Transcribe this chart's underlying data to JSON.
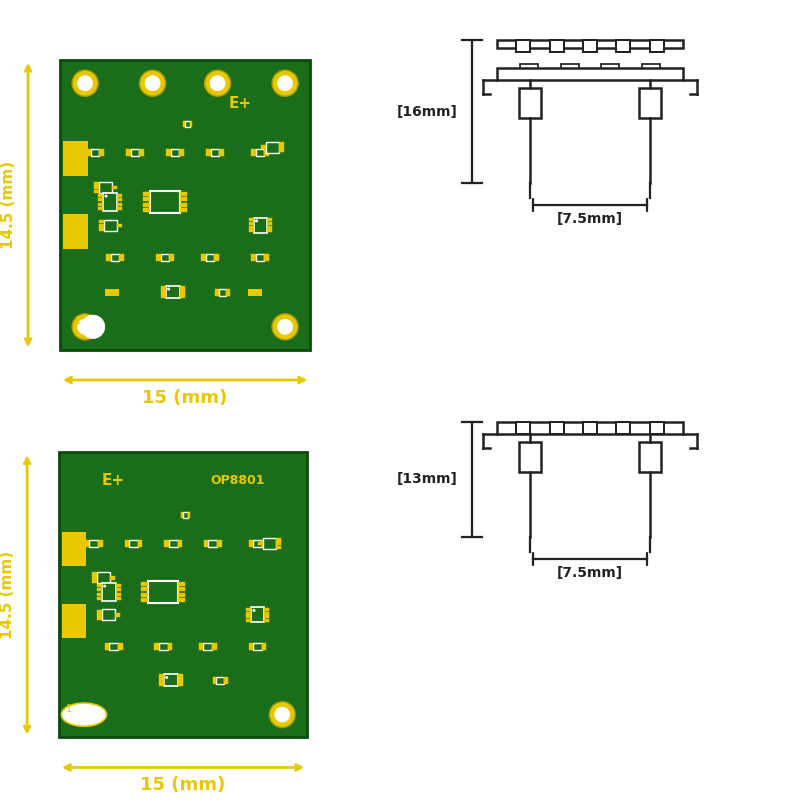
{
  "bg_color": "#ffffff",
  "board_green": "#1a6e1a",
  "pad_yellow": "#e8c800",
  "pad_white": "#ffffff",
  "dim_yellow": "#e8c800",
  "line_color": "#222222",
  "top_panel": {
    "board_label": "E+",
    "dim_height": "14.5 (mm)",
    "dim_width": "15 (mm)",
    "height_label": "[16mm]",
    "width_label": "[7.5mm]"
  },
  "bottom_panel": {
    "board_label": "E+",
    "model_label": "OP8801",
    "dim_height": "14.5 (mm)",
    "dim_width": "15 (mm)",
    "height_label": "[13mm]",
    "width_label": "[7.5mm]"
  }
}
